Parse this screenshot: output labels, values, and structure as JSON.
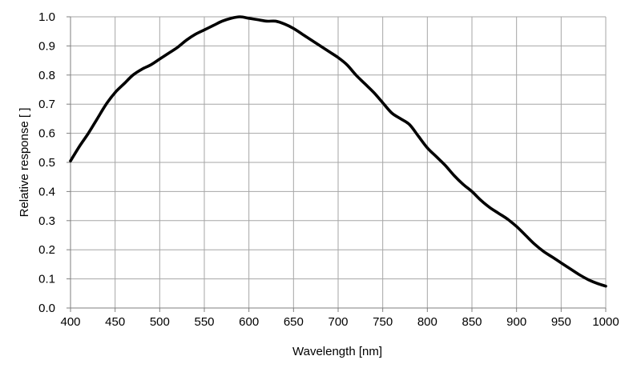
{
  "chart_data": {
    "type": "line",
    "title": "",
    "xlabel": "Wavelength [nm]",
    "ylabel": "Relative response [ ]",
    "xlim": [
      400,
      1000
    ],
    "ylim": [
      0.0,
      1.0
    ],
    "grid": true,
    "legend": "none",
    "x_ticks": [
      "400",
      "450",
      "500",
      "550",
      "600",
      "650",
      "700",
      "750",
      "800",
      "850",
      "900",
      "950",
      "1000"
    ],
    "y_ticks": [
      "0.0",
      "0.1",
      "0.2",
      "0.3",
      "0.4",
      "0.5",
      "0.6",
      "0.7",
      "0.8",
      "0.9",
      "1.0"
    ],
    "series": [
      {
        "color": "#000000",
        "x": [
          400,
          410,
          420,
          430,
          440,
          450,
          460,
          470,
          480,
          490,
          500,
          510,
          520,
          530,
          540,
          550,
          560,
          570,
          580,
          590,
          600,
          610,
          620,
          630,
          640,
          650,
          660,
          670,
          680,
          690,
          700,
          710,
          720,
          730,
          740,
          750,
          760,
          770,
          780,
          790,
          800,
          810,
          820,
          830,
          840,
          850,
          860,
          870,
          880,
          890,
          900,
          910,
          920,
          930,
          940,
          950,
          960,
          970,
          980,
          990,
          1000
        ],
        "values": [
          0.505,
          0.555,
          0.6,
          0.65,
          0.7,
          0.74,
          0.77,
          0.8,
          0.82,
          0.835,
          0.855,
          0.875,
          0.895,
          0.92,
          0.94,
          0.955,
          0.97,
          0.985,
          0.995,
          1.0,
          0.995,
          0.99,
          0.985,
          0.985,
          0.975,
          0.96,
          0.94,
          0.92,
          0.9,
          0.88,
          0.86,
          0.835,
          0.8,
          0.77,
          0.74,
          0.705,
          0.67,
          0.65,
          0.63,
          0.59,
          0.55,
          0.52,
          0.49,
          0.455,
          0.425,
          0.4,
          0.37,
          0.345,
          0.325,
          0.305,
          0.28,
          0.25,
          0.22,
          0.195,
          0.175,
          0.155,
          0.135,
          0.115,
          0.098,
          0.085,
          0.075
        ]
      }
    ]
  }
}
